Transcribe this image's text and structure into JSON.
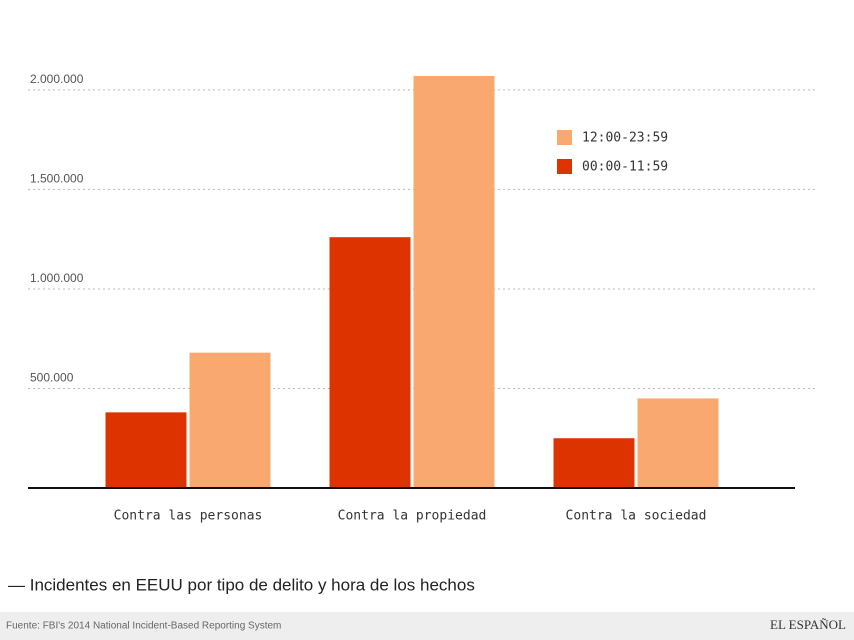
{
  "chart_data": {
    "type": "bar",
    "title": "— Incidentes en EEUU por tipo de delito y hora de los hechos",
    "source": "Fuente: FBI's 2014 National Incident-Based Reporting System",
    "brand": "EL ESPAÑOL",
    "categories": [
      "Contra las personas",
      "Contra la propiedad",
      "Contra la sociedad"
    ],
    "series": [
      {
        "name": "00:00-11:59",
        "color": "#dd3300",
        "values": [
          380000,
          1260000,
          250000
        ]
      },
      {
        "name": "12:00-23:59",
        "color": "#f9a870",
        "values": [
          680000,
          2070000,
          450000
        ]
      }
    ],
    "ylim": [
      0,
      2100000
    ],
    "yticks": [
      {
        "value": 500000,
        "label": "500.000"
      },
      {
        "value": 1000000,
        "label": "1.000.000"
      },
      {
        "value": 1500000,
        "label": "1.500.000"
      },
      {
        "value": 2000000,
        "label": "2.000.000"
      }
    ],
    "grid": true,
    "legend": "top-right"
  }
}
